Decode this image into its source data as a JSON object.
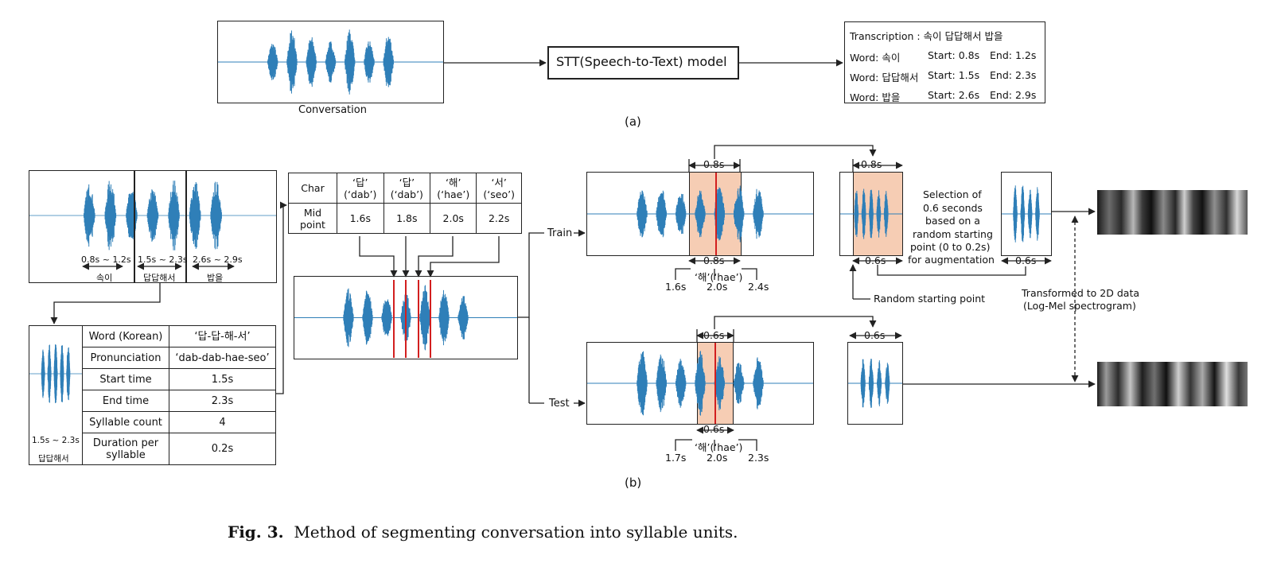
{
  "figure": {
    "part_a": {
      "waveform_label": "Conversation",
      "model_label": "STT(Speech-to-Text) model",
      "output": {
        "transcription": "Transcription : 속이 답답해서 밥을",
        "words": [
          {
            "word": "Word: 속이",
            "start": "Start: 0.8s",
            "end": "End: 1.2s"
          },
          {
            "word": "Word: 답답해서",
            "start": "Start: 1.5s",
            "end": "End: 2.3s"
          },
          {
            "word": "Word: 밥을",
            "start": "Start: 2.6s",
            "end": "End: 2.9s"
          }
        ]
      },
      "label": "(a)"
    },
    "part_b": {
      "segments": [
        {
          "range": "0.8s ~ 1.2s",
          "word": "속이"
        },
        {
          "range": "1.5s ~ 2.3s",
          "word": "답답해서"
        },
        {
          "range": "2.6s ~ 2.9s",
          "word": "밥을"
        }
      ],
      "word_clip": {
        "range": "1.5s ~ 2.3s",
        "word": "답답해서"
      },
      "info_table": [
        {
          "key": "Word (Korean)",
          "value": "‘답-답-해-서’"
        },
        {
          "key": "Pronunciation",
          "value": "‘dab-dab-hae-seo’"
        },
        {
          "key": "Start time",
          "value": "1.5s"
        },
        {
          "key": "End time",
          "value": "2.3s"
        },
        {
          "key": "Syllable count",
          "value": "4"
        },
        {
          "key": "Duration per syllable",
          "value": "0.2s"
        }
      ],
      "char_table": {
        "row1_header": "Char",
        "row2_header": "Mid point",
        "chars": [
          {
            "top": "‘답’",
            "bottom": "(‘dab’)",
            "mid": "1.6s"
          },
          {
            "top": "‘답’",
            "bottom": "(‘dab’)",
            "mid": "1.8s"
          },
          {
            "top": "‘해’",
            "bottom": "(‘hae’)",
            "mid": "2.0s"
          },
          {
            "top": "‘서’",
            "bottom": "(‘seo’)",
            "mid": "2.2s"
          }
        ]
      },
      "train": {
        "label": "Train",
        "window": "0.8s",
        "window_top": "0.8s",
        "window_bottom": "0.8s",
        "syllable": "‘해’(‘hae’)",
        "t_start": "1.6s",
        "t_mid": "2.0s",
        "t_end": "2.4s",
        "crop_top": "0.8s",
        "crop_bottom": "0.6s",
        "final_len": "0.6s",
        "selection_note": [
          "Selection of",
          "0.6 seconds",
          "based on a",
          "random starting",
          "point (0 to 0.2s)",
          "for augmentation"
        ],
        "random_label": "Random starting point"
      },
      "test": {
        "label": "Test",
        "window_top": "0.6s",
        "window_bottom": "0.6s",
        "syllable": "‘해’(‘hae’)",
        "t_start": "1.7s",
        "t_mid": "2.0s",
        "t_end": "2.3s",
        "crop_top": "0.6s"
      },
      "transform_note": [
        "Transformed to 2D data",
        "(Log-Mel spectrogram)"
      ],
      "label": "(b)"
    },
    "caption": {
      "prefix": "Fig. 3.",
      "text": "Method of segmenting conversation into syllable units."
    }
  },
  "colors": {
    "wave": "#2f7fb8",
    "highlight": "#f6cdb4",
    "marker": "#d21f1f",
    "line": "#222222"
  }
}
